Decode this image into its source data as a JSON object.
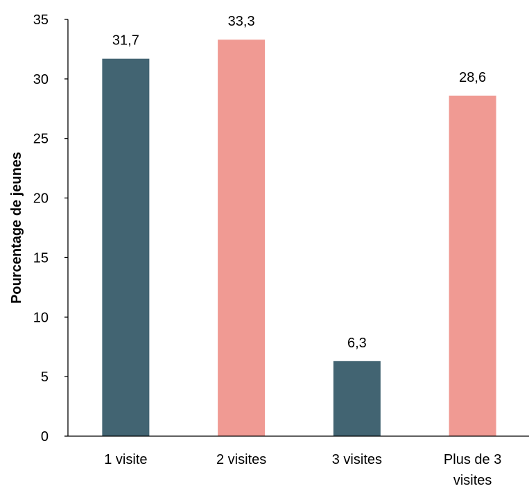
{
  "chart_data": {
    "type": "bar",
    "title": "",
    "xlabel": "",
    "ylabel": "Pourcentage de jeunes",
    "ylim": [
      0,
      35
    ],
    "yticks": [
      0,
      5,
      10,
      15,
      20,
      25,
      30,
      35
    ],
    "grid": false,
    "legend": "none",
    "categories": [
      [
        "1 visite"
      ],
      [
        "2 visites"
      ],
      [
        "3 visites"
      ],
      [
        "Plus de 3",
        "visites"
      ]
    ],
    "values": [
      31.7,
      33.3,
      6.3,
      28.6
    ],
    "data_labels": [
      "31,7",
      "33,3",
      "6,3",
      "28,6"
    ],
    "bar_colors": [
      "#426472",
      "#f09a93",
      "#426472",
      "#f09a93"
    ]
  }
}
